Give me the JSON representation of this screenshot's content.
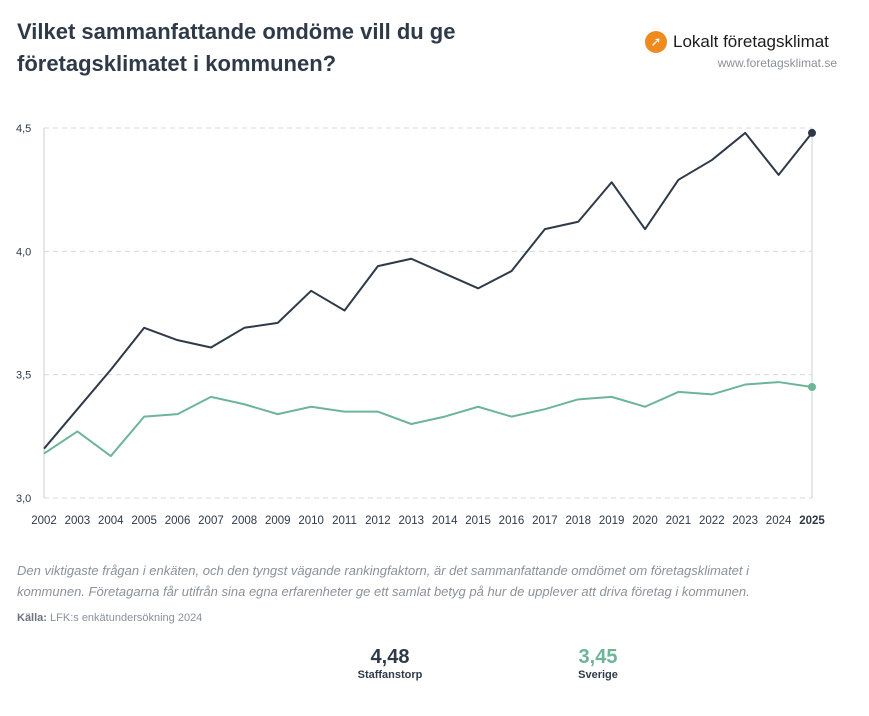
{
  "title": "Vilket sammanfattande omdöme vill du ge företagsklimatet i kommunen?",
  "logo": {
    "name": "Lokalt företagsklimat",
    "url": "www.foretagsklimat.se",
    "color": "#ef8a1e"
  },
  "description": "Den viktigaste frågan i enkäten, och den tyngst vägande rankingfaktorn, är det sammanfattande omdömet om företagsklimatet i kommunen. Företagarna får utifrån sina egna erfarenheter ge ett samlat betyg på hur de upplever att driva företag i kommunen.",
  "source": {
    "label": "Källa:",
    "text": "LFK:s enkätundersökning 2024"
  },
  "stats": [
    {
      "value": "4,48",
      "label": "Staffanstorp",
      "color": "#2f3a48"
    },
    {
      "value": "3,45",
      "label": "Sverige",
      "color": "#6db597"
    }
  ],
  "chart_data": {
    "type": "line",
    "x": [
      "2002",
      "2003",
      "2004",
      "2005",
      "2006",
      "2007",
      "2008",
      "2009",
      "2010",
      "2011",
      "2012",
      "2013",
      "2014",
      "2015",
      "2016",
      "2017",
      "2018",
      "2019",
      "2020",
      "2021",
      "2022",
      "2023",
      "2024",
      "2025"
    ],
    "ylim": [
      3.0,
      4.5
    ],
    "yticks": [
      "3,0",
      "3,5",
      "4,0",
      "4,5"
    ],
    "grid": true,
    "series": [
      {
        "name": "Staffanstorp",
        "color": "#2f3a48",
        "values": [
          3.2,
          3.36,
          3.52,
          3.69,
          3.64,
          3.61,
          3.69,
          3.71,
          3.84,
          3.76,
          3.94,
          3.97,
          3.91,
          3.85,
          3.92,
          4.09,
          4.12,
          4.28,
          4.09,
          4.29,
          4.37,
          4.48,
          4.31,
          4.48
        ]
      },
      {
        "name": "Sverige",
        "color": "#6db597",
        "values": [
          3.18,
          3.27,
          3.17,
          3.33,
          3.34,
          3.41,
          3.38,
          3.34,
          3.37,
          3.35,
          3.35,
          3.3,
          3.33,
          3.37,
          3.33,
          3.36,
          3.4,
          3.41,
          3.37,
          3.43,
          3.42,
          3.46,
          3.47,
          3.45
        ]
      }
    ]
  }
}
